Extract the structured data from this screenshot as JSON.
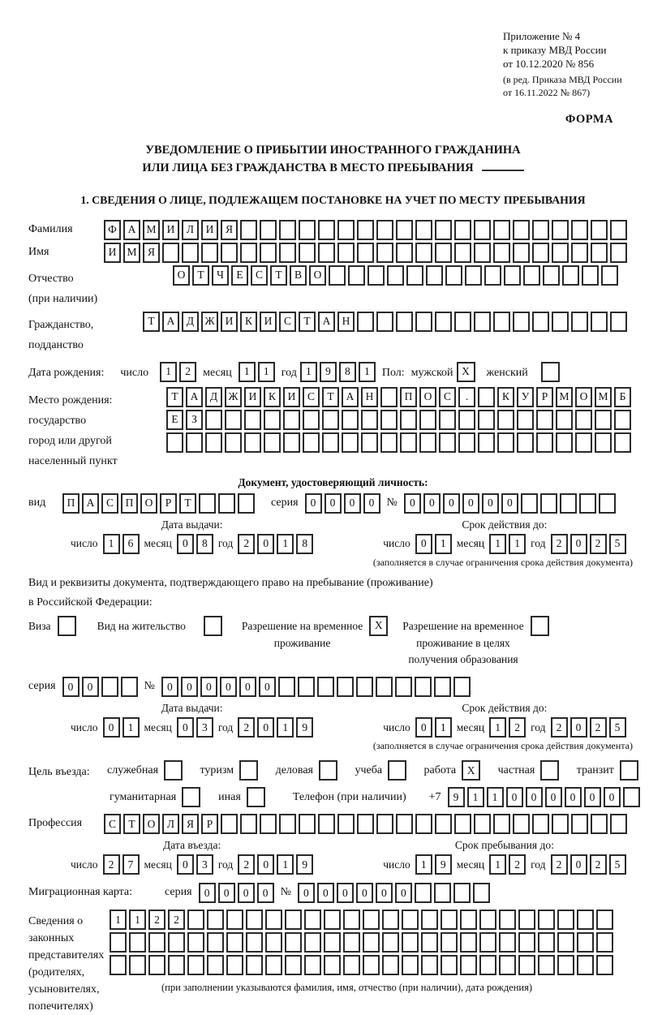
{
  "doc": {
    "appendix": [
      "Приложение № 4",
      "к приказу МВД России",
      "от 10.12.2020 № 856"
    ],
    "amendment": [
      "(в ред. Приказа МВД России",
      "от 16.11.2022 № 867)"
    ],
    "form_label": "ФОРМА",
    "title": [
      "УВЕДОМЛЕНИЕ О ПРИБЫТИИ ИНОСТРАННОГО ГРАЖДАНИНА",
      "ИЛИ ЛИЦА БЕЗ ГРАЖДАНСТВА В МЕСТО ПРЕБЫВАНИЯ"
    ],
    "section1_heading": "1. СВЕДЕНИЯ О ЛИЦЕ, ПОДЛЕЖАЩЕМ ПОСТАНОВКЕ НА УЧЕТ ПО МЕСТУ ПРЕБЫВАНИЯ"
  },
  "labels": {
    "day": "число",
    "month": "месяц",
    "year": "год",
    "series": "серия",
    "number": "№",
    "issue_date": "Дата выдачи:",
    "valid_until": "Срок действия до:",
    "entry_date": "Дата въезда:",
    "stay_until": "Срок пребывания до:",
    "validity_note": "(заполняется в случае ограничения срока действия документа)"
  },
  "person": {
    "surname": {
      "label": "Фамилия",
      "value": "ФАМИЛИЯ"
    },
    "given_name": {
      "label": "Имя",
      "value": "ИМЯ"
    },
    "patronymic": {
      "label": [
        "Отчество",
        "(при наличии)"
      ],
      "value": "ОТЧЕСТВО"
    },
    "citizenship": {
      "label": [
        "Гражданство,",
        "подданство"
      ],
      "value": "ТАДЖИКИСТАН"
    },
    "birth_date": {
      "label": "Дата рождения:",
      "day": "12",
      "month": "11",
      "year": "1981"
    },
    "gender": {
      "label": "Пол:",
      "male_label": "мужской",
      "male": "X",
      "female_label": "женский",
      "female": ""
    },
    "birth_place": {
      "labels": [
        "Место рождения:",
        "государство",
        "город или другой",
        "населенный пункт"
      ],
      "row1": "ТАДЖИКИСТАН ПОС. КУРМОМБ",
      "row2": "ЕЗ",
      "row3": ""
    }
  },
  "identity_doc": {
    "heading": "Документ, удостоверяющий личность:",
    "type_label": "вид",
    "type_value": "ПАСПОРТ",
    "series_value": "0000",
    "number_value": "000000",
    "issue": {
      "day": "16",
      "month": "08",
      "year": "2018"
    },
    "valid": {
      "day": "01",
      "month": "11",
      "year": "2025"
    }
  },
  "residence_doc": {
    "intro": [
      "Вид и реквизиты документа, подтверждающего право на пребывание (проживание)",
      "в Российской Федерации:"
    ],
    "options": [
      {
        "lines": [
          "Виза"
        ],
        "checked": ""
      },
      {
        "lines": [
          "Вид на жительство"
        ],
        "checked": ""
      },
      {
        "lines": [
          "Разрешение на временное",
          "проживание"
        ],
        "checked": "X"
      },
      {
        "lines": [
          "Разрешение на временное",
          "проживание в целях",
          "получения образования"
        ],
        "checked": ""
      }
    ],
    "series_value": "00",
    "number_value": "000000",
    "issue": {
      "day": "01",
      "month": "03",
      "year": "2019"
    },
    "valid": {
      "day": "01",
      "month": "12",
      "year": "2025"
    }
  },
  "visit": {
    "purpose_label": "Цель въезда:",
    "purposes": [
      {
        "label": "служебная",
        "checked": ""
      },
      {
        "label": "туризм",
        "checked": ""
      },
      {
        "label": "деловая",
        "checked": ""
      },
      {
        "label": "учеба",
        "checked": ""
      },
      {
        "label": "работа",
        "checked": "X"
      },
      {
        "label": "частная",
        "checked": ""
      },
      {
        "label": "транзит",
        "checked": ""
      },
      {
        "label": "гуманитарная",
        "checked": ""
      },
      {
        "label": "иная",
        "checked": ""
      }
    ],
    "phone": {
      "label": "Телефон (при наличии)",
      "prefix": "+7",
      "value": "911000000"
    },
    "profession": {
      "label": "Профессия",
      "value": "СТОЛЯР"
    },
    "entry": {
      "day": "27",
      "month": "03",
      "year": "2019"
    },
    "stay": {
      "day": "19",
      "month": "12",
      "year": "2025"
    }
  },
  "migration_card": {
    "label": "Миграционная карта:",
    "series_value": "0000",
    "number_value": "000000"
  },
  "legal_reps": {
    "labels": [
      "Сведения о",
      "законных",
      "представителях",
      "(родителях,",
      "усыновителях,",
      "попечителях)"
    ],
    "row1": "1122",
    "row2": "",
    "row3": "",
    "note": "(при заполнении указываются фамилия, имя, отчество (при наличии), дата рождения)"
  }
}
